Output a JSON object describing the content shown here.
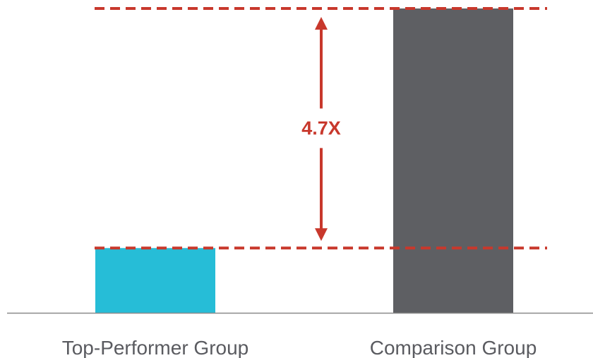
{
  "chart_data": {
    "type": "bar",
    "categories": [
      "Top-Performer Group",
      "Comparison Group"
    ],
    "values": [
      1,
      4.7
    ],
    "colors": [
      "#26bdd7",
      "#5e5f63"
    ],
    "ylim": [
      0,
      4.7
    ],
    "axis_color": "#8a8a8a",
    "annotation": {
      "text": "4.7X",
      "from_value": 1,
      "to_value": 4.7,
      "color": "#c8382c",
      "style": "dashed reference lines with double-headed arrow"
    },
    "grid": false,
    "legend": false
  }
}
